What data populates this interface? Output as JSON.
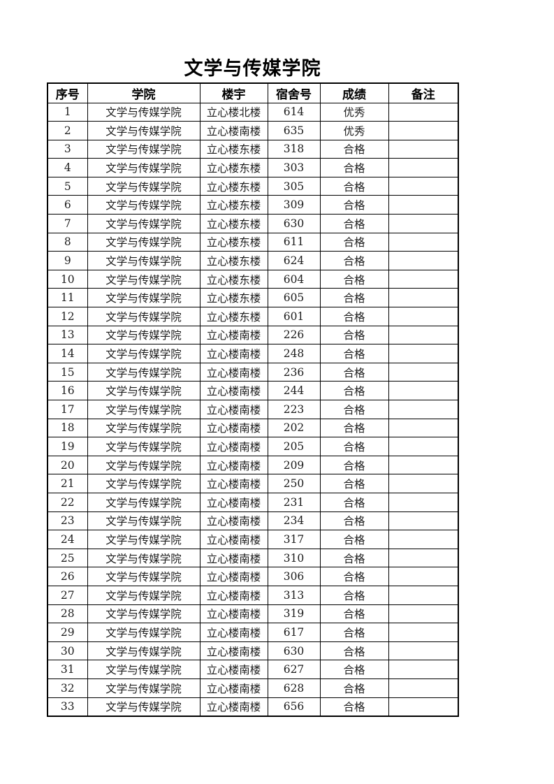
{
  "page": {
    "title": "文学与传媒学院"
  },
  "table": {
    "headers": [
      "序号",
      "学院",
      "楼宇",
      "宿舍号",
      "成绩",
      "备注"
    ],
    "rows": [
      {
        "no": "1",
        "college": "文学与传媒学院",
        "building": "立心楼北楼",
        "room": "614",
        "grade": "优秀",
        "remark": ""
      },
      {
        "no": "2",
        "college": "文学与传媒学院",
        "building": "立心楼南楼",
        "room": "635",
        "grade": "优秀",
        "remark": ""
      },
      {
        "no": "3",
        "college": "文学与传媒学院",
        "building": "立心楼东楼",
        "room": "318",
        "grade": "合格",
        "remark": ""
      },
      {
        "no": "4",
        "college": "文学与传媒学院",
        "building": "立心楼东楼",
        "room": "303",
        "grade": "合格",
        "remark": ""
      },
      {
        "no": "5",
        "college": "文学与传媒学院",
        "building": "立心楼东楼",
        "room": "305",
        "grade": "合格",
        "remark": ""
      },
      {
        "no": "6",
        "college": "文学与传媒学院",
        "building": "立心楼东楼",
        "room": "309",
        "grade": "合格",
        "remark": ""
      },
      {
        "no": "7",
        "college": "文学与传媒学院",
        "building": "立心楼东楼",
        "room": "630",
        "grade": "合格",
        "remark": ""
      },
      {
        "no": "8",
        "college": "文学与传媒学院",
        "building": "立心楼东楼",
        "room": "611",
        "grade": "合格",
        "remark": ""
      },
      {
        "no": "9",
        "college": "文学与传媒学院",
        "building": "立心楼东楼",
        "room": "624",
        "grade": "合格",
        "remark": ""
      },
      {
        "no": "10",
        "college": "文学与传媒学院",
        "building": "立心楼东楼",
        "room": "604",
        "grade": "合格",
        "remark": ""
      },
      {
        "no": "11",
        "college": "文学与传媒学院",
        "building": "立心楼东楼",
        "room": "605",
        "grade": "合格",
        "remark": ""
      },
      {
        "no": "12",
        "college": "文学与传媒学院",
        "building": "立心楼东楼",
        "room": "601",
        "grade": "合格",
        "remark": ""
      },
      {
        "no": "13",
        "college": "文学与传媒学院",
        "building": "立心楼南楼",
        "room": "226",
        "grade": "合格",
        "remark": ""
      },
      {
        "no": "14",
        "college": "文学与传媒学院",
        "building": "立心楼南楼",
        "room": "248",
        "grade": "合格",
        "remark": ""
      },
      {
        "no": "15",
        "college": "文学与传媒学院",
        "building": "立心楼南楼",
        "room": "236",
        "grade": "合格",
        "remark": ""
      },
      {
        "no": "16",
        "college": "文学与传媒学院",
        "building": "立心楼南楼",
        "room": "244",
        "grade": "合格",
        "remark": ""
      },
      {
        "no": "17",
        "college": "文学与传媒学院",
        "building": "立心楼南楼",
        "room": "223",
        "grade": "合格",
        "remark": ""
      },
      {
        "no": "18",
        "college": "文学与传媒学院",
        "building": "立心楼南楼",
        "room": "202",
        "grade": "合格",
        "remark": ""
      },
      {
        "no": "19",
        "college": "文学与传媒学院",
        "building": "立心楼南楼",
        "room": "205",
        "grade": "合格",
        "remark": ""
      },
      {
        "no": "20",
        "college": "文学与传媒学院",
        "building": "立心楼南楼",
        "room": "209",
        "grade": "合格",
        "remark": ""
      },
      {
        "no": "21",
        "college": "文学与传媒学院",
        "building": "立心楼南楼",
        "room": "250",
        "grade": "合格",
        "remark": ""
      },
      {
        "no": "22",
        "college": "文学与传媒学院",
        "building": "立心楼南楼",
        "room": "231",
        "grade": "合格",
        "remark": ""
      },
      {
        "no": "23",
        "college": "文学与传媒学院",
        "building": "立心楼南楼",
        "room": "234",
        "grade": "合格",
        "remark": ""
      },
      {
        "no": "24",
        "college": "文学与传媒学院",
        "building": "立心楼南楼",
        "room": "317",
        "grade": "合格",
        "remark": ""
      },
      {
        "no": "25",
        "college": "文学与传媒学院",
        "building": "立心楼南楼",
        "room": "310",
        "grade": "合格",
        "remark": ""
      },
      {
        "no": "26",
        "college": "文学与传媒学院",
        "building": "立心楼南楼",
        "room": "306",
        "grade": "合格",
        "remark": ""
      },
      {
        "no": "27",
        "college": "文学与传媒学院",
        "building": "立心楼南楼",
        "room": "313",
        "grade": "合格",
        "remark": ""
      },
      {
        "no": "28",
        "college": "文学与传媒学院",
        "building": "立心楼南楼",
        "room": "319",
        "grade": "合格",
        "remark": ""
      },
      {
        "no": "29",
        "college": "文学与传媒学院",
        "building": "立心楼南楼",
        "room": "617",
        "grade": "合格",
        "remark": ""
      },
      {
        "no": "30",
        "college": "文学与传媒学院",
        "building": "立心楼南楼",
        "room": "630",
        "grade": "合格",
        "remark": ""
      },
      {
        "no": "31",
        "college": "文学与传媒学院",
        "building": "立心楼南楼",
        "room": "627",
        "grade": "合格",
        "remark": ""
      },
      {
        "no": "32",
        "college": "文学与传媒学院",
        "building": "立心楼南楼",
        "room": "628",
        "grade": "合格",
        "remark": ""
      },
      {
        "no": "33",
        "college": "文学与传媒学院",
        "building": "立心楼南楼",
        "room": "656",
        "grade": "合格",
        "remark": ""
      }
    ]
  }
}
